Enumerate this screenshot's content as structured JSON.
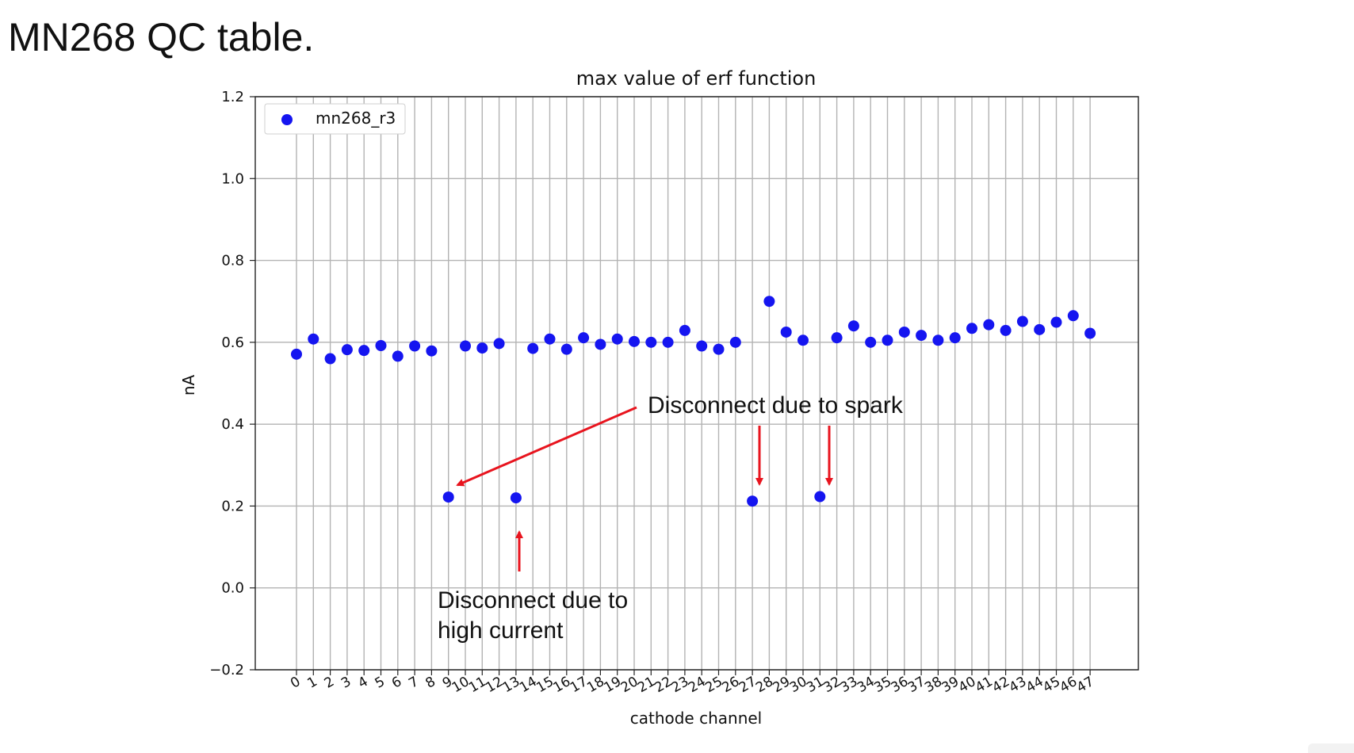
{
  "slide": {
    "title": "MN268 QC table."
  },
  "chart_data": {
    "type": "scatter",
    "title": "max value of erf function",
    "xlabel": "cathode channel",
    "ylabel": "nA",
    "ylim": [
      -0.2,
      1.2
    ],
    "y_ticks": [
      "1.2",
      "1.0",
      "0.8",
      "0.6",
      "0.4",
      "0.2",
      "0.0",
      "−0.2"
    ],
    "x_ticks": [
      "0",
      "1",
      "2",
      "3",
      "4",
      "5",
      "6",
      "7",
      "8",
      "9",
      "10",
      "11",
      "12",
      "13",
      "14",
      "15",
      "16",
      "17",
      "18",
      "19",
      "20",
      "21",
      "22",
      "23",
      "24",
      "25",
      "26",
      "27",
      "28",
      "29",
      "30",
      "31",
      "32",
      "33",
      "34",
      "35",
      "36",
      "37",
      "38",
      "39",
      "40",
      "41",
      "42",
      "43",
      "44",
      "45",
      "46",
      "47"
    ],
    "grid": true,
    "legend_position": "upper left",
    "series": [
      {
        "name": "mn268_r3",
        "color": "#1515f0",
        "x": [
          0,
          1,
          2,
          3,
          4,
          5,
          6,
          7,
          8,
          9,
          10,
          11,
          12,
          13,
          14,
          15,
          16,
          17,
          18,
          19,
          20,
          21,
          22,
          23,
          24,
          25,
          26,
          27,
          28,
          29,
          30,
          31,
          32,
          33,
          34,
          35,
          36,
          37,
          38,
          39,
          40,
          41,
          42,
          43,
          44,
          45,
          46,
          47
        ],
        "y": [
          0.571,
          0.608,
          0.56,
          0.582,
          0.58,
          0.592,
          0.566,
          0.591,
          0.579,
          0.222,
          0.591,
          0.586,
          0.597,
          0.22,
          0.585,
          0.608,
          0.583,
          0.611,
          0.595,
          0.608,
          0.602,
          0.6,
          0.6,
          0.629,
          0.591,
          0.583,
          0.6,
          0.212,
          0.7,
          0.625,
          0.605,
          0.223,
          0.611,
          0.64,
          0.6,
          0.605,
          0.625,
          0.617,
          0.605,
          0.611,
          0.634,
          0.643,
          0.629,
          0.651,
          0.631,
          0.649,
          0.665,
          0.622
        ]
      }
    ],
    "annotations": [
      {
        "id": "spark",
        "text": "Disconnect due to spark",
        "arrow_color": "#e8141e",
        "points_to_channels": [
          9,
          27,
          31
        ]
      },
      {
        "id": "high-current",
        "lines": [
          "Disconnect due to",
          "high current"
        ],
        "arrow_color": "#e8141e",
        "points_to_channels": [
          13
        ]
      }
    ]
  }
}
